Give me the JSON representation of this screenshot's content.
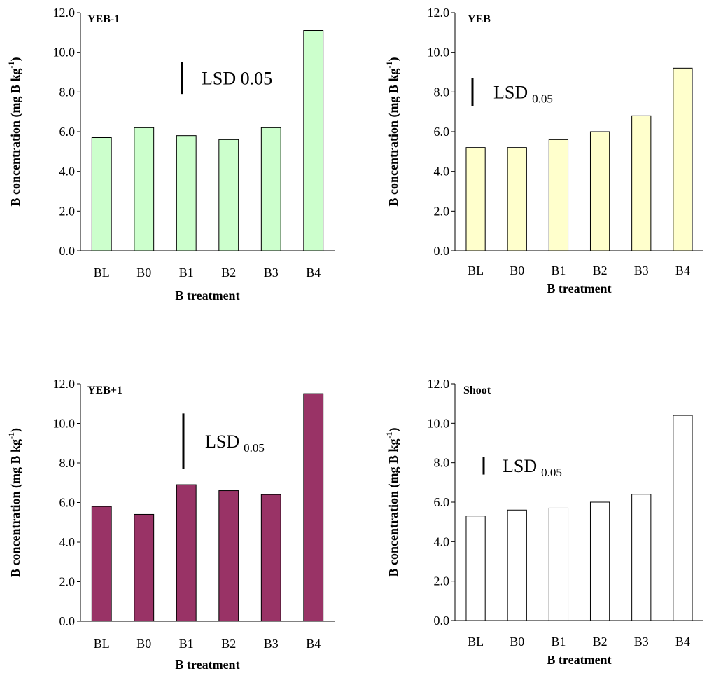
{
  "chart_data": [
    {
      "type": "bar",
      "title": "YEB-1",
      "xlabel": "B treatment",
      "ylabel": [
        "B concentration (mg B kg",
        "-1",
        ")"
      ],
      "categories": [
        "BL",
        "B0",
        "B1",
        "B2",
        "B3",
        "B4"
      ],
      "values": [
        5.7,
        6.2,
        5.8,
        5.6,
        6.2,
        11.1
      ],
      "color": "#ccffcc",
      "ylim": [
        0,
        12
      ],
      "yticks": [
        {
          "value": 0,
          "label": "0.0"
        },
        {
          "value": 2,
          "label": "2.0"
        },
        {
          "value": 4,
          "label": "4.0"
        },
        {
          "value": 6,
          "label": "6.0"
        },
        {
          "value": 8,
          "label": "8.0"
        },
        {
          "value": 10,
          "label": "10.0"
        },
        {
          "value": 12,
          "label": "12.0"
        }
      ],
      "grid": false,
      "lsd": {
        "label": {
          "text": "LSD 0.05"
        },
        "from": 7.9,
        "to": 9.5
      }
    },
    {
      "type": "bar",
      "title": "YEB",
      "xlabel": "B treatment",
      "ylabel": [
        "B concentration (mg B kg",
        "-1",
        ")"
      ],
      "categories": [
        "BL",
        "B0",
        "B1",
        "B2",
        "B3",
        "B4"
      ],
      "values": [
        5.2,
        5.2,
        5.6,
        6.0,
        6.8,
        9.2
      ],
      "color": "#ffffcc",
      "ylim": [
        0,
        12
      ],
      "yticks": [
        {
          "value": 0,
          "label": "0.0"
        },
        {
          "value": 2,
          "label": "2.0"
        },
        {
          "value": 4,
          "label": "4.0"
        },
        {
          "value": 6,
          "label": "6.0"
        },
        {
          "value": 8,
          "label": "8.0"
        },
        {
          "value": 10,
          "label": "10.0"
        },
        {
          "value": 12,
          "label": "12.0"
        }
      ],
      "grid": false,
      "lsd": {
        "label": {
          "text": "LSD",
          "sub": "0.05"
        },
        "from": 7.3,
        "to": 8.7
      }
    },
    {
      "type": "bar",
      "title": "YEB+1",
      "xlabel": "B treatment",
      "ylabel": [
        "B concentration (mg B kg",
        "-1",
        ")"
      ],
      "categories": [
        "BL",
        "B0",
        "B1",
        "B2",
        "B3",
        "B4"
      ],
      "values": [
        5.8,
        5.4,
        6.9,
        6.6,
        6.4,
        11.5
      ],
      "color": "#993366",
      "ylim": [
        0,
        12
      ],
      "yticks": [
        {
          "value": 0,
          "label": "0.0"
        },
        {
          "value": 2,
          "label": "2.0"
        },
        {
          "value": 4,
          "label": "4.0"
        },
        {
          "value": 6,
          "label": "6.0"
        },
        {
          "value": 8,
          "label": "8.0"
        },
        {
          "value": 10,
          "label": "10.0"
        },
        {
          "value": 12,
          "label": "12.0"
        }
      ],
      "grid": false,
      "lsd": {
        "label": {
          "text": "LSD",
          "sub": "0.05"
        },
        "from": 7.7,
        "to": 10.5
      }
    },
    {
      "type": "bar",
      "title": "Shoot",
      "xlabel": "B treatment",
      "ylabel": [
        "B concentration (mg B kg",
        "-1",
        ")"
      ],
      "categories": [
        "BL",
        "B0",
        "B1",
        "B2",
        "B3",
        "B4"
      ],
      "values": [
        5.3,
        5.6,
        5.7,
        6.0,
        6.4,
        10.4
      ],
      "color": "#ffffff",
      "ylim": [
        0,
        12
      ],
      "yticks": [
        {
          "value": 0,
          "label": "0.0"
        },
        {
          "value": 2,
          "label": "2.0"
        },
        {
          "value": 4,
          "label": "4.0"
        },
        {
          "value": 6,
          "label": "6.0"
        },
        {
          "value": 8,
          "label": "8.0"
        },
        {
          "value": 10,
          "label": "10.0"
        },
        {
          "value": 12,
          "label": "12.0"
        }
      ],
      "grid": false,
      "lsd": {
        "label": {
          "text": "LSD",
          "sub": "0.05"
        },
        "from": 7.4,
        "to": 8.3
      }
    }
  ]
}
